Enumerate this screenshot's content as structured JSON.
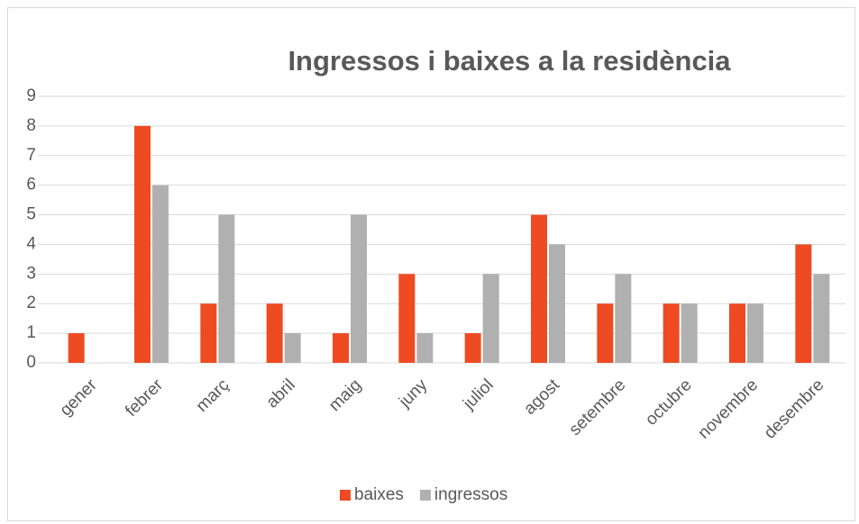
{
  "chart_data": {
    "type": "bar",
    "title": "Ingressos i baixes a la residència",
    "categories": [
      "gener",
      "febrer",
      "març",
      "abril",
      "maig",
      "juny",
      "juliol",
      "agost",
      "setembre",
      "octubre",
      "novembre",
      "desembre"
    ],
    "series": [
      {
        "name": "baixes",
        "color": "#ee4b22",
        "values": [
          1,
          8,
          2,
          2,
          1,
          3,
          1,
          5,
          2,
          2,
          2,
          4
        ]
      },
      {
        "name": "ingressos",
        "color": "#b0b0b0",
        "values": [
          0,
          6,
          5,
          1,
          5,
          1,
          3,
          4,
          3,
          2,
          2,
          3
        ]
      }
    ],
    "ylim": [
      0,
      9
    ],
    "yticks": [
      0,
      1,
      2,
      3,
      4,
      5,
      6,
      7,
      8,
      9
    ],
    "grid": true,
    "legend": "bottom"
  }
}
